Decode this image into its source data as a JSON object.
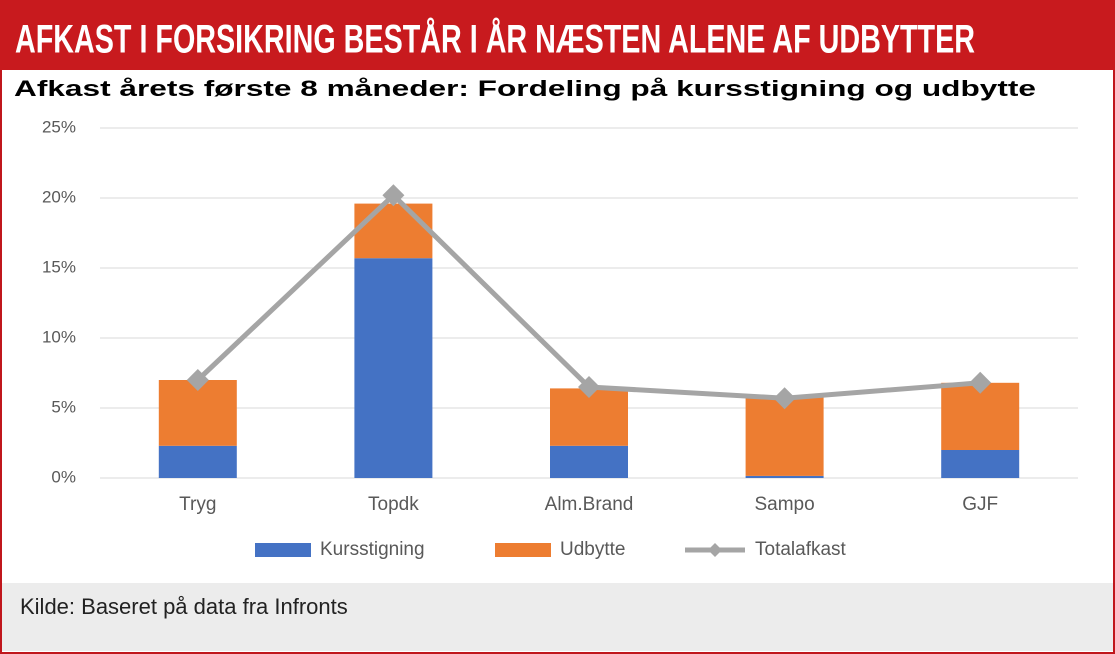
{
  "chart_data": {
    "type": "bar",
    "stacked": true,
    "title": "AFKAST I FORSIKRING BESTÅR I ÅR NÆSTEN ALENE AF UDBYTTER",
    "subtitle": "Afkast årets første 8 måneder: Fordeling på kursstigning og udbytte",
    "source": "Kilde:  Baseret på data fra Infronts",
    "categories": [
      "Tryg",
      "Topdk",
      "Alm.Brand",
      "Sampo",
      "GJF"
    ],
    "series": [
      {
        "name": "Kursstigning",
        "color": "#4472c4",
        "values": [
          2.3,
          15.7,
          2.3,
          0.15,
          2.0
        ]
      },
      {
        "name": "Udbytte",
        "color": "#ed7d31",
        "values": [
          4.7,
          3.9,
          4.1,
          5.65,
          4.8
        ]
      },
      {
        "name": "Totalafkast",
        "type": "line",
        "color": "#a5a5a5",
        "values": [
          7.0,
          20.2,
          6.5,
          5.7,
          6.8
        ]
      }
    ],
    "ylim": [
      0,
      25
    ],
    "yticks": [
      {
        "value": 0,
        "label": "0%"
      },
      {
        "value": 5,
        "label": "5%"
      },
      {
        "value": 10,
        "label": "10%"
      },
      {
        "value": 15,
        "label": "15%"
      },
      {
        "value": 20,
        "label": "20%"
      },
      {
        "value": 25,
        "label": "25%"
      }
    ],
    "grid": true,
    "legend": "bottom"
  }
}
